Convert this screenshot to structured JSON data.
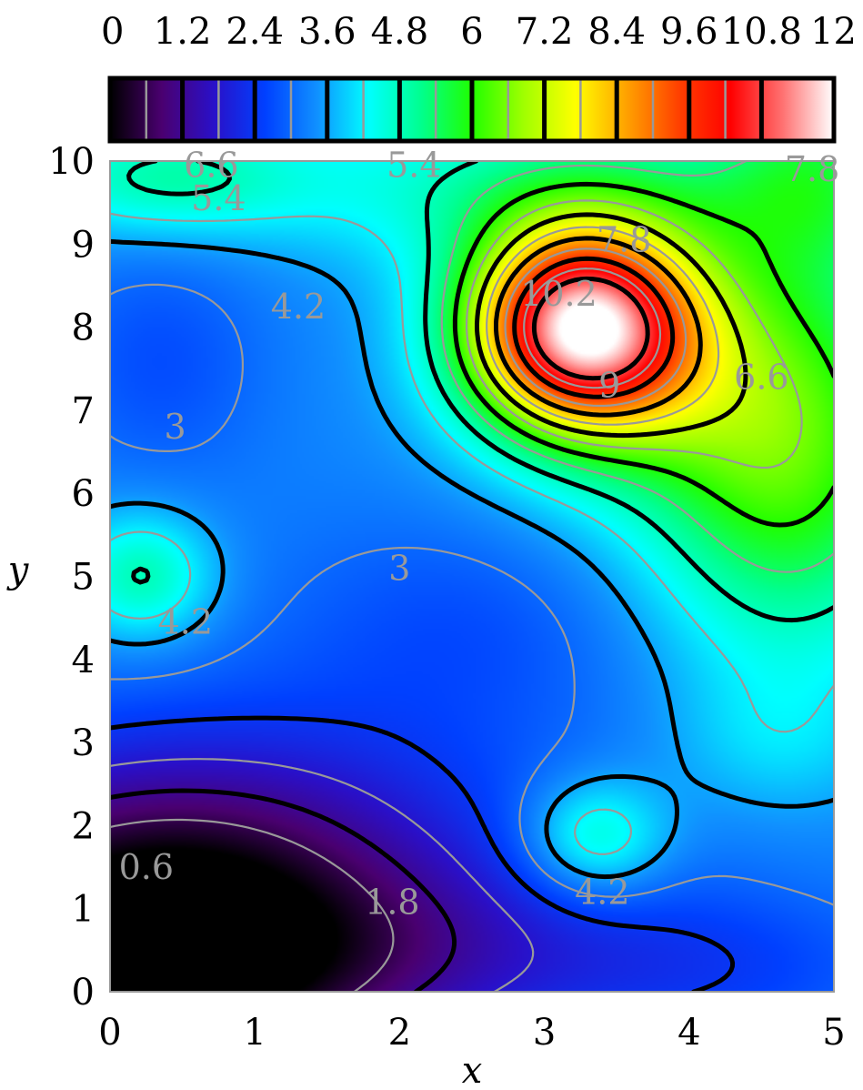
{
  "chart_data": {
    "type": "heatmap",
    "subtype": "filled contour plot with contour lines and colorbar",
    "xlabel": "x",
    "ylabel": "y",
    "xlim": [
      0,
      5
    ],
    "ylim": [
      0,
      10
    ],
    "x_ticks": [
      "0",
      "1",
      "2",
      "3",
      "4",
      "5"
    ],
    "y_ticks": [
      "0",
      "1",
      "2",
      "3",
      "4",
      "5",
      "6",
      "7",
      "8",
      "9",
      "10"
    ],
    "colorbar": {
      "range": [
        0,
        12
      ],
      "ticks": [
        "0",
        "1.2",
        "2.4",
        "3.6",
        "4.8",
        "6",
        "7.2",
        "8.4",
        "9.6",
        "10.8",
        "12"
      ],
      "colormap": "rainbow-like: black-purple-blue-cyan-green-yellow-orange-red-white",
      "stops": [
        "#000000",
        "#4a0070",
        "#2a10c8",
        "#0040ff",
        "#1090ff",
        "#00ffff",
        "#00ff90",
        "#20ff00",
        "#a0ff00",
        "#ffff00",
        "#ffa000",
        "#ff4000",
        "#ff0000",
        "#ff7070",
        "#ffffff"
      ],
      "major_lines_every": 1.2,
      "minor_lines_every": 0.6
    },
    "contours": {
      "major_levels": [
        1.2,
        2.4,
        3.6,
        4.8,
        6,
        7.2,
        8.4,
        9.6,
        10.8
      ],
      "minor_levels": [
        0.6,
        1.8,
        3,
        4.2,
        5.4,
        6.6,
        7.8,
        9,
        10.2
      ],
      "major_color": "#000000",
      "minor_color": "#999999"
    },
    "features": [
      {
        "kind": "peak",
        "x": 3.25,
        "y": 8.0,
        "value": 11.0
      },
      {
        "kind": "local_max",
        "x": 3.35,
        "y": 1.85,
        "value": 5.0
      },
      {
        "kind": "local_max",
        "x": 0.22,
        "y": 5.0,
        "value": 4.95
      },
      {
        "kind": "local_min",
        "x": 0.0,
        "y": 0.0,
        "value": 0.1
      },
      {
        "kind": "local_min",
        "x": 2.4,
        "y": 4.4,
        "value": 2.75
      },
      {
        "kind": "local_min",
        "x": 0.35,
        "y": 7.6,
        "value": 2.75
      }
    ],
    "contour_labels": [
      {
        "text": "6.6",
        "x": 0.7,
        "y": 9.95
      },
      {
        "text": "5.4",
        "x": 0.75,
        "y": 9.55
      },
      {
        "text": "5.4",
        "x": 2.1,
        "y": 9.95
      },
      {
        "text": "7.8",
        "x": 4.85,
        "y": 9.9
      },
      {
        "text": "7.8",
        "x": 3.55,
        "y": 9.05
      },
      {
        "text": "4.2",
        "x": 1.3,
        "y": 8.25
      },
      {
        "text": "10.2",
        "x": 3.1,
        "y": 8.4
      },
      {
        "text": "9",
        "x": 3.45,
        "y": 7.3
      },
      {
        "text": "6.6",
        "x": 4.5,
        "y": 7.4
      },
      {
        "text": "3",
        "x": 0.45,
        "y": 6.8
      },
      {
        "text": "3",
        "x": 2.0,
        "y": 5.1
      },
      {
        "text": "4.2",
        "x": 0.52,
        "y": 4.45
      },
      {
        "text": "4.2",
        "x": 3.4,
        "y": 1.2
      },
      {
        "text": "0.6",
        "x": 0.25,
        "y": 1.5
      },
      {
        "text": "1.8",
        "x": 1.95,
        "y": 1.08
      }
    ]
  }
}
